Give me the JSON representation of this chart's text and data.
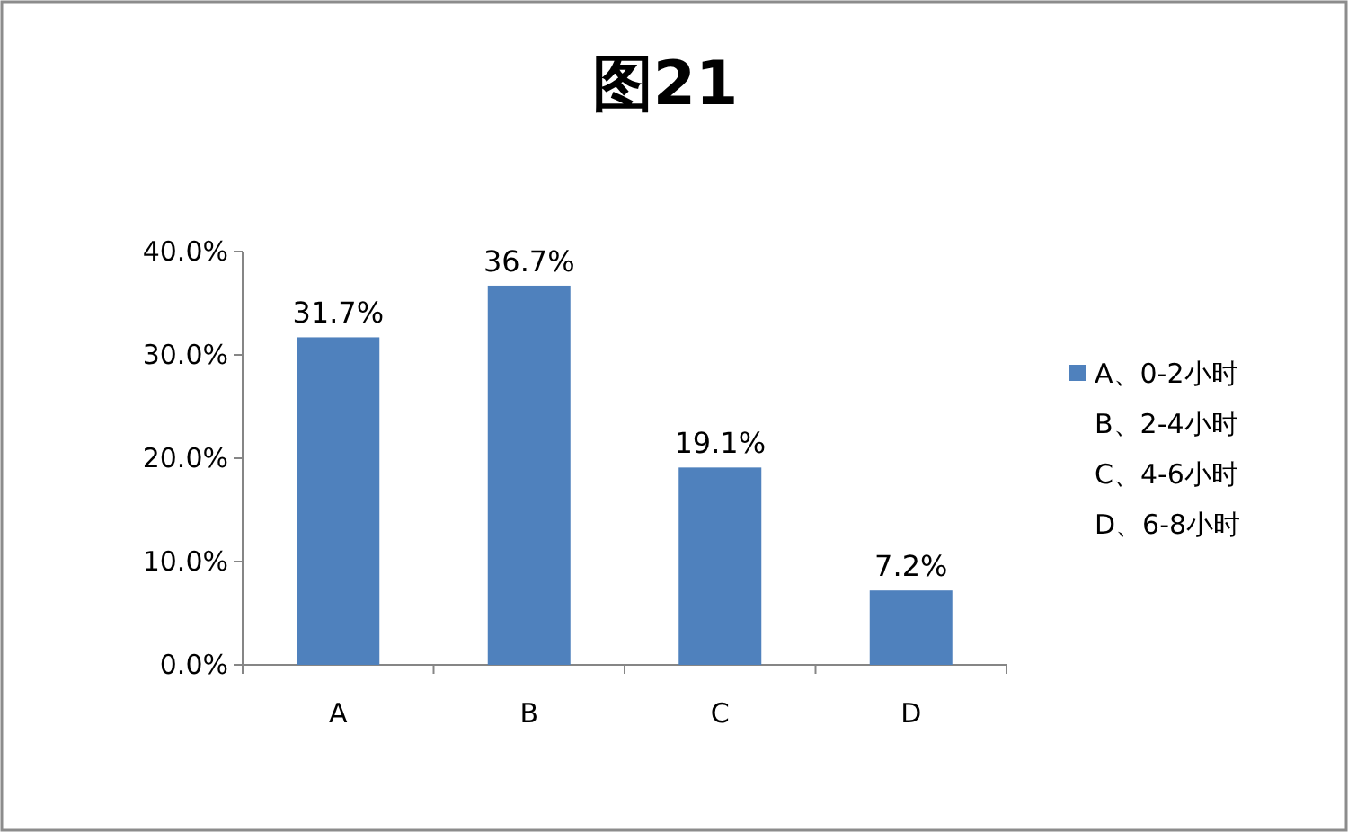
{
  "chart_data": {
    "type": "bar",
    "title": "图21",
    "categories": [
      "A",
      "B",
      "C",
      "D"
    ],
    "series": [
      {
        "name": "A、0-2小时",
        "color": "#4f81bd",
        "values": [
          31.7,
          36.7,
          19.1,
          7.2
        ],
        "value_labels": [
          "31.7%",
          "36.7%",
          "19.1%",
          "7.2%"
        ]
      }
    ],
    "ylim": [
      0,
      40
    ],
    "yticks": [
      {
        "value": 0,
        "label": "0.0%"
      },
      {
        "value": 10,
        "label": "10.0%"
      },
      {
        "value": 20,
        "label": "20.0%"
      },
      {
        "value": 30,
        "label": "30.0%"
      },
      {
        "value": 40,
        "label": "40.0%"
      }
    ],
    "legend": "right",
    "annotations": [
      "B、2-4小时",
      "C、4-6小时",
      "D、6-8小时"
    ]
  }
}
